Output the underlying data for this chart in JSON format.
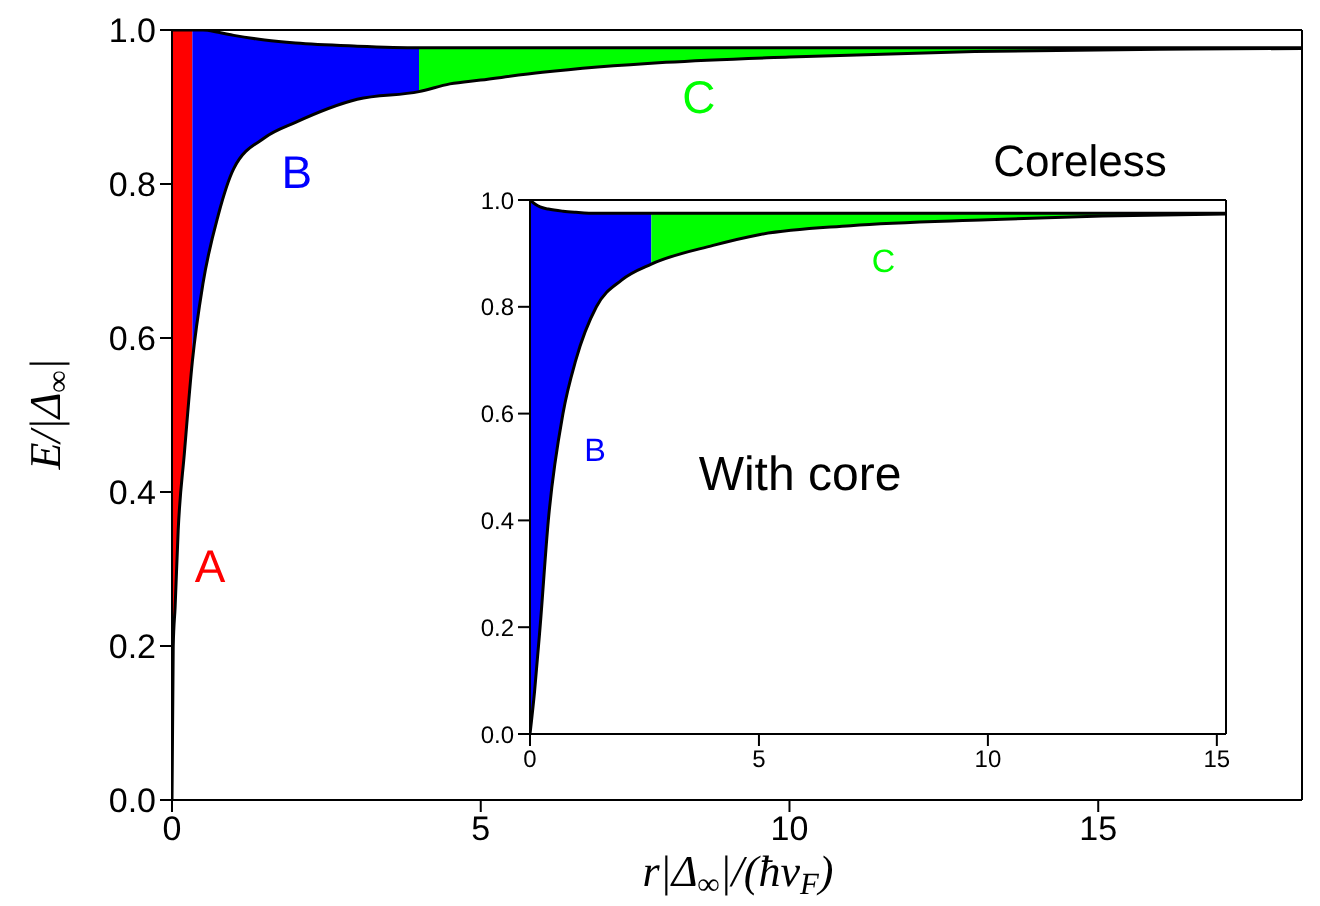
{
  "chart_data": [
    {
      "type": "area",
      "xlabel": "r|Δ$_{∞}$|/(ħv$_{F}$)",
      "ylabel": "E/|Δ$_{∞}$|",
      "annotations": [
        "Coreless"
      ],
      "xlim": [
        0,
        18.3
      ],
      "xticks": [
        0,
        5,
        10,
        15
      ],
      "ylim": [
        0,
        1
      ],
      "yticks": [
        {
          "value": 0,
          "label": "0.0"
        },
        {
          "value": 0.2,
          "label": "0.2"
        },
        {
          "value": 0.4,
          "label": "0.4"
        },
        {
          "value": 0.6,
          "label": "0.6"
        },
        {
          "value": 0.8,
          "label": "0.8"
        },
        {
          "value": 1,
          "label": "1.0"
        }
      ],
      "marker": "none",
      "series": [
        {
          "name": "A",
          "type": "area",
          "color": "#ff0000",
          "x": [
            0,
            0.02,
            0.05,
            0.1,
            0.2,
            0.33
          ],
          "values": [
            1,
            1,
            1,
            1,
            1,
            1
          ]
        },
        {
          "name": "B",
          "type": "area",
          "color": "#0000ff",
          "x": [
            0.33,
            0.5,
            0.75,
            1,
            1.5,
            2,
            3,
            4
          ],
          "values": [
            1,
            1,
            0.997,
            0.993,
            0.987,
            0.983,
            0.979,
            0.977
          ]
        },
        {
          "name": "C",
          "type": "area",
          "color": "#00ff00",
          "x": [
            4,
            4.5,
            5,
            6,
            8,
            10,
            13,
            16,
            18.3
          ],
          "values": [
            0.977,
            0.977,
            0.977,
            0.977,
            0.977,
            0.977,
            0.977,
            0.977,
            0.977
          ]
        },
        {
          "type": "line",
          "color": "#000000",
          "x": [
            0,
            0.02,
            0.05,
            0.1,
            0.2,
            0.33,
            0.5,
            0.75,
            1,
            1.5,
            2,
            3,
            4,
            4.5,
            5,
            6,
            8,
            10,
            13,
            16,
            18.3
          ],
          "values": [
            0,
            0.2,
            0.25,
            0.35,
            0.45,
            0.57,
            0.67,
            0.76,
            0.82,
            0.86,
            0.88,
            0.91,
            0.92,
            0.93,
            0.935,
            0.945,
            0.958,
            0.965,
            0.972,
            0.975,
            0.976
          ]
        },
        {
          "type": "line",
          "color": "#000000",
          "x": [
            0,
            0.33,
            0.5,
            0.75,
            1,
            1.5,
            2,
            3,
            4,
            18.3
          ],
          "values": [
            1,
            1,
            1,
            0.997,
            0.993,
            0.987,
            0.983,
            0.979,
            0.977,
            0.977
          ]
        }
      ]
    },
    {
      "type": "area",
      "annotations": [
        "With core"
      ],
      "xlim": [
        0,
        15.2
      ],
      "xticks": [
        0,
        5,
        10,
        15
      ],
      "ylim": [
        0,
        1
      ],
      "yticks": [
        {
          "value": 0,
          "label": "0.0"
        },
        {
          "value": 0.2,
          "label": "0.2"
        },
        {
          "value": 0.4,
          "label": "0.4"
        },
        {
          "value": 0.6,
          "label": "0.6"
        },
        {
          "value": 0.8,
          "label": "0.8"
        },
        {
          "value": 1,
          "label": "1.0"
        }
      ],
      "marker": "none",
      "series": [
        {
          "name": "B",
          "type": "area",
          "color": "#0000ff",
          "x": [
            0,
            0.1,
            0.22,
            0.4,
            0.72,
            1,
            1.45,
            2,
            2.65
          ],
          "values": [
            1,
            0.993,
            0.987,
            0.983,
            0.979,
            0.977,
            0.975,
            0.975,
            0.975
          ]
        },
        {
          "name": "C",
          "type": "area",
          "color": "#00ff00",
          "x": [
            2.65,
            4,
            5,
            7,
            10,
            12.5,
            15.2
          ],
          "values": [
            0.975,
            0.975,
            0.975,
            0.975,
            0.975,
            0.975,
            0.975
          ]
        },
        {
          "type": "line",
          "color": "#000000",
          "x": [
            0,
            0.1,
            0.22,
            0.4,
            0.72,
            1,
            1.45,
            2,
            2.65,
            4,
            5,
            7,
            10,
            12.5,
            15.2
          ],
          "values": [
            0,
            0.08,
            0.2,
            0.4,
            0.6,
            0.7,
            0.8,
            0.85,
            0.88,
            0.915,
            0.935,
            0.952,
            0.963,
            0.97,
            0.974
          ]
        },
        {
          "type": "line",
          "color": "#000000",
          "x": [
            0,
            0.1,
            0.22,
            0.4,
            0.72,
            1,
            1.45,
            2,
            15.2
          ],
          "values": [
            1,
            0.993,
            0.987,
            0.983,
            0.979,
            0.977,
            0.975,
            0.975,
            0.975
          ]
        }
      ]
    }
  ]
}
